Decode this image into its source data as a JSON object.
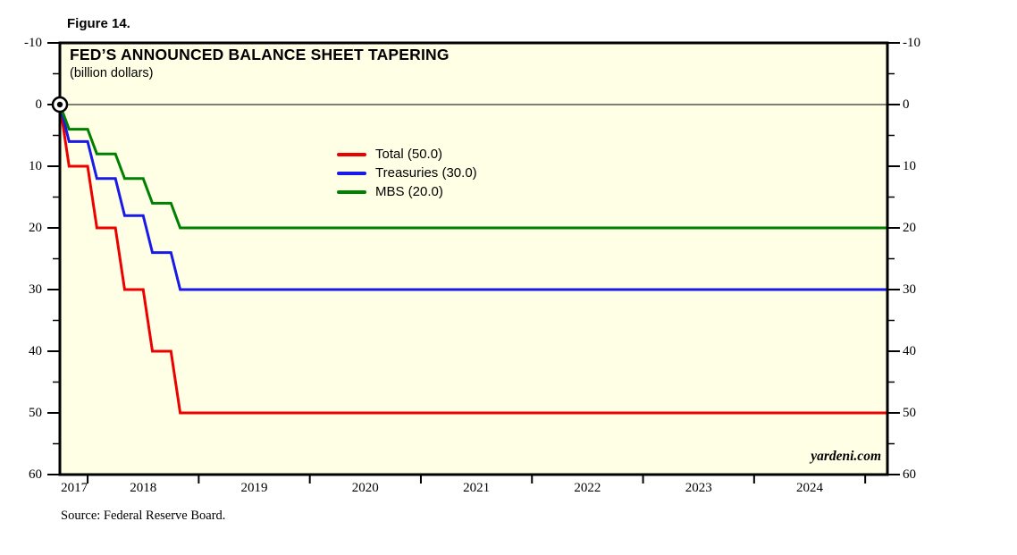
{
  "figure_label": "Figure 14.",
  "colors": {
    "plot_background": "#ffffe5",
    "axis": "#000000",
    "text": "#000000",
    "total_red": "#ec0000",
    "treasuries_blue": "#1a1ae8",
    "mbs_green": "#008000"
  },
  "chart_data": {
    "type": "line",
    "title": "FED’S ANNOUNCED BALANCE SHEET TAPERING",
    "subtitle": "(billion dollars)",
    "source": "Source: Federal Reserve Board.",
    "watermark": "yardeni.com",
    "grid": "off",
    "legend_position": "inside upper-center-left",
    "x_range": [
      2017.75,
      2025.2
    ],
    "y_range": [
      -10,
      60
    ],
    "y_axis_inverted": true,
    "y_axis_sides": "both",
    "y_ticks_major": [
      -10,
      0,
      10,
      20,
      30,
      40,
      50,
      60
    ],
    "y_ticks_minor": [
      -5,
      5,
      15,
      25,
      35,
      45,
      55
    ],
    "x_ticks_years": [
      2018,
      2019,
      2020,
      2021,
      2022,
      2023,
      2024,
      2025
    ],
    "x_labels": [
      {
        "text": "2017",
        "x": 2017.88
      },
      {
        "text": "2018",
        "x": 2018.5
      },
      {
        "text": "2019",
        "x": 2019.5
      },
      {
        "text": "2020",
        "x": 2020.5
      },
      {
        "text": "2021",
        "x": 2021.5
      },
      {
        "text": "2022",
        "x": 2022.5
      },
      {
        "text": "2023",
        "x": 2023.5
      },
      {
        "text": "2024",
        "x": 2024.5
      }
    ],
    "zero_line": 0,
    "origin_marker": {
      "x": 2017.75,
      "y": 0
    },
    "x": [
      2017.75,
      2017.833,
      2018.0,
      2018.083,
      2018.25,
      2018.333,
      2018.5,
      2018.583,
      2018.75,
      2018.833,
      2025.2
    ],
    "series": [
      {
        "name": "Total",
        "legend_label": "Total (50.0)",
        "color": "#ec0000",
        "final_value": 50,
        "values": [
          0,
          10,
          10,
          20,
          20,
          30,
          30,
          40,
          40,
          50,
          50
        ]
      },
      {
        "name": "Treasuries",
        "legend_label": "Treasuries (30.0)",
        "color": "#1a1ae8",
        "final_value": 30,
        "values": [
          0,
          6,
          6,
          12,
          12,
          18,
          18,
          24,
          24,
          30,
          30
        ]
      },
      {
        "name": "MBS",
        "legend_label": "MBS (20.0)",
        "color": "#008000",
        "final_value": 20,
        "values": [
          0,
          4,
          4,
          8,
          8,
          12,
          12,
          16,
          16,
          20,
          20
        ]
      }
    ]
  }
}
